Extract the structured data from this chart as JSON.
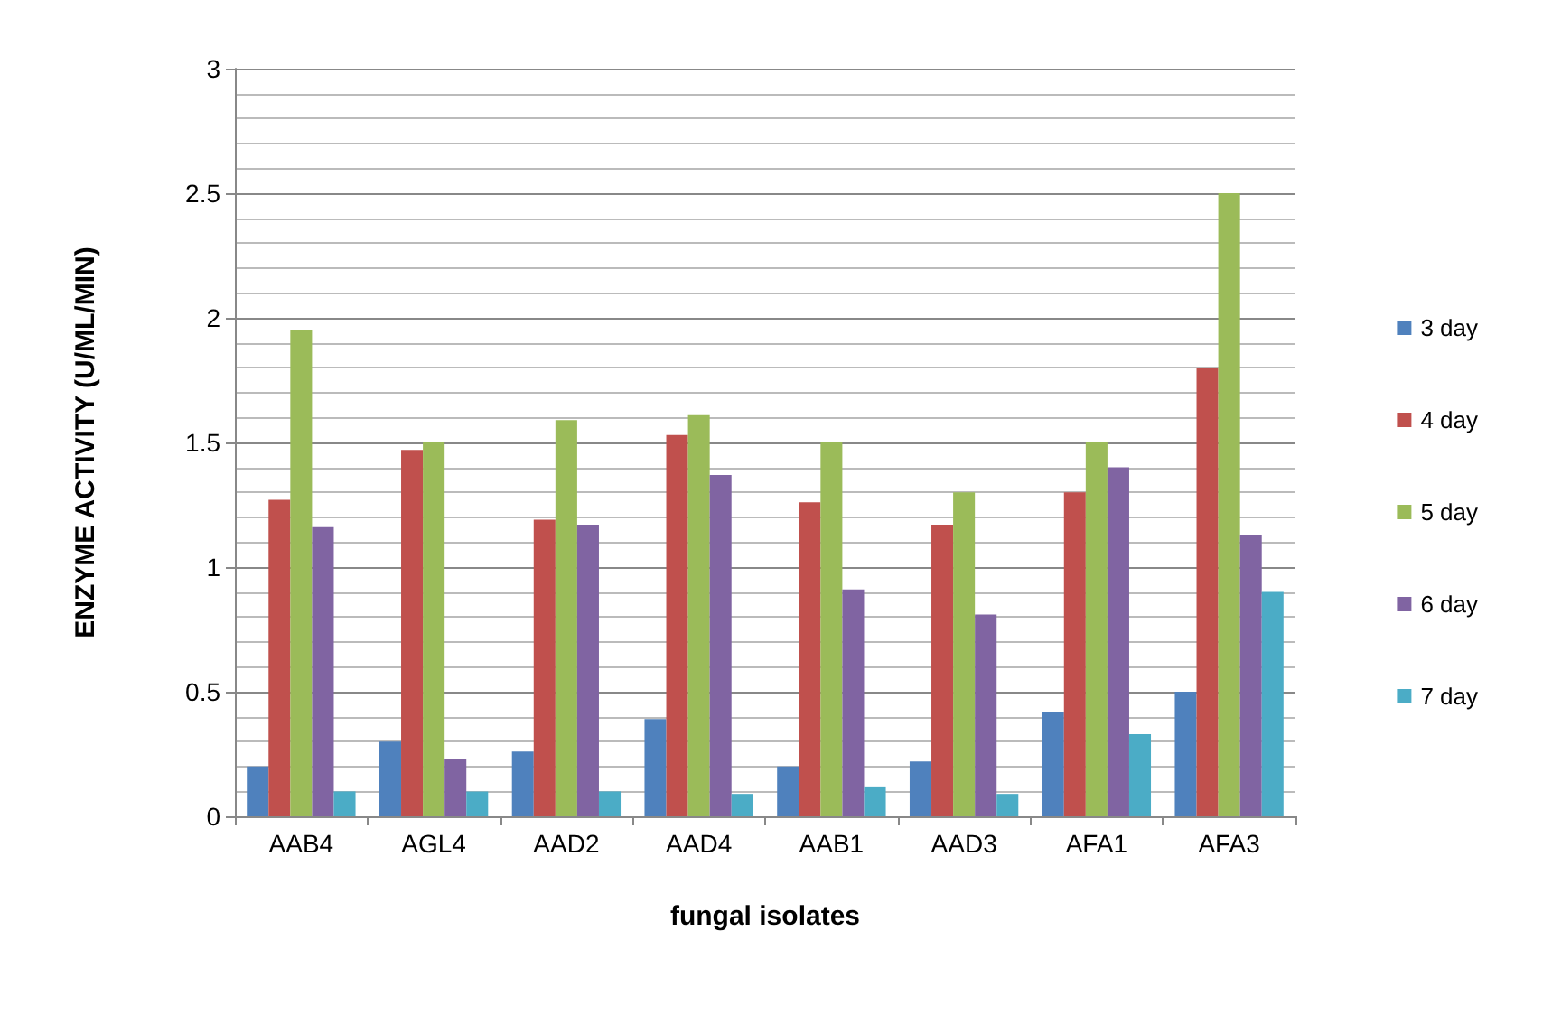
{
  "chart_data": {
    "type": "bar",
    "xlabel": "fungal isolates",
    "ylabel": "ENZYME ACTIVITY (U/ML/MIN)",
    "categories": [
      "AAB4",
      "AGL4",
      "AAD2",
      "AAD4",
      "AAB1",
      "AAD3",
      "AFA1",
      "AFA3"
    ],
    "series": [
      {
        "name": "3 day",
        "color": "#4f81bd",
        "values": [
          0.2,
          0.3,
          0.26,
          0.39,
          0.2,
          0.22,
          0.42,
          0.5
        ]
      },
      {
        "name": "4 day",
        "color": "#c0504d",
        "values": [
          1.27,
          1.47,
          1.19,
          1.53,
          1.26,
          1.17,
          1.3,
          1.8
        ]
      },
      {
        "name": "5 day",
        "color": "#9bbb59",
        "values": [
          1.95,
          1.5,
          1.59,
          1.61,
          1.5,
          1.3,
          1.5,
          2.5
        ]
      },
      {
        "name": "6 day",
        "color": "#8064a2",
        "values": [
          1.16,
          0.23,
          1.17,
          1.37,
          0.91,
          0.81,
          1.4,
          1.13
        ]
      },
      {
        "name": "7 day",
        "color": "#4bacc6",
        "values": [
          0.1,
          0.1,
          0.1,
          0.09,
          0.12,
          0.09,
          0.33,
          0.9
        ]
      }
    ],
    "ylim": [
      0,
      3
    ],
    "yticks": [
      0,
      0.5,
      1,
      1.5,
      2,
      2.5,
      3
    ],
    "grid": "y",
    "legend": "right"
  }
}
